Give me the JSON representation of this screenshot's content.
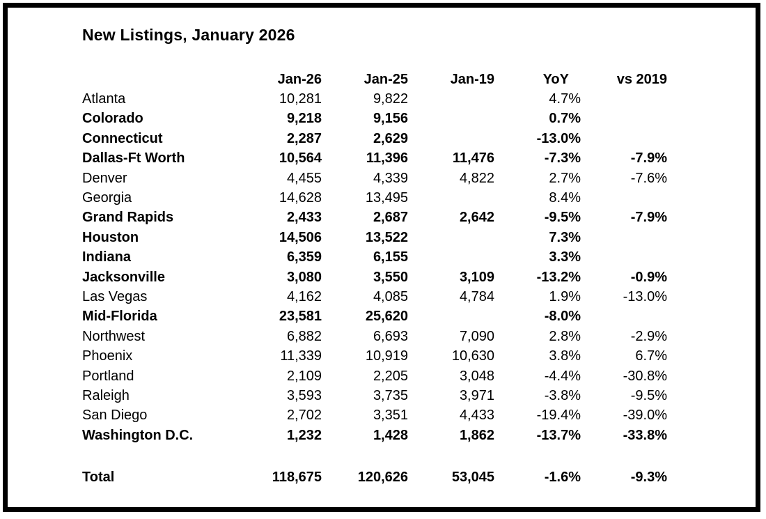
{
  "title": "New Listings, January 2026",
  "colors": {
    "text": "#000000",
    "background": "#ffffff",
    "frame_border": "#000000"
  },
  "chart_data": {
    "type": "table",
    "title": "New Listings, January 2026",
    "columns": [
      "",
      "Jan-26",
      "Jan-25",
      "Jan-19",
      "YoY",
      "vs 2019"
    ],
    "rows": [
      {
        "name": "Atlanta",
        "jan_26": "10,281",
        "jan_25": "9,822",
        "jan_19": "",
        "yoy": "4.7%",
        "vs_2019": "",
        "bold": false
      },
      {
        "name": "Colorado",
        "jan_26": "9,218",
        "jan_25": "9,156",
        "jan_19": "",
        "yoy": "0.7%",
        "vs_2019": "",
        "bold": true
      },
      {
        "name": "Connecticut",
        "jan_26": "2,287",
        "jan_25": "2,629",
        "jan_19": "",
        "yoy": "-13.0%",
        "vs_2019": "",
        "bold": true
      },
      {
        "name": "Dallas-Ft Worth",
        "jan_26": "10,564",
        "jan_25": "11,396",
        "jan_19": "11,476",
        "yoy": "-7.3%",
        "vs_2019": "-7.9%",
        "bold": true
      },
      {
        "name": "Denver",
        "jan_26": "4,455",
        "jan_25": "4,339",
        "jan_19": "4,822",
        "yoy": "2.7%",
        "vs_2019": "-7.6%",
        "bold": false
      },
      {
        "name": "Georgia",
        "jan_26": "14,628",
        "jan_25": "13,495",
        "jan_19": "",
        "yoy": "8.4%",
        "vs_2019": "",
        "bold": false
      },
      {
        "name": "Grand Rapids",
        "jan_26": "2,433",
        "jan_25": "2,687",
        "jan_19": "2,642",
        "yoy": "-9.5%",
        "vs_2019": "-7.9%",
        "bold": true
      },
      {
        "name": "Houston",
        "jan_26": "14,506",
        "jan_25": "13,522",
        "jan_19": "",
        "yoy": "7.3%",
        "vs_2019": "",
        "bold": true
      },
      {
        "name": "Indiana",
        "jan_26": "6,359",
        "jan_25": "6,155",
        "jan_19": "",
        "yoy": "3.3%",
        "vs_2019": "",
        "bold": true
      },
      {
        "name": "Jacksonville",
        "jan_26": "3,080",
        "jan_25": "3,550",
        "jan_19": "3,109",
        "yoy": "-13.2%",
        "vs_2019": "-0.9%",
        "bold": true
      },
      {
        "name": "Las Vegas",
        "jan_26": "4,162",
        "jan_25": "4,085",
        "jan_19": "4,784",
        "yoy": "1.9%",
        "vs_2019": "-13.0%",
        "bold": false
      },
      {
        "name": "Mid-Florida",
        "jan_26": "23,581",
        "jan_25": "25,620",
        "jan_19": "",
        "yoy": "-8.0%",
        "vs_2019": "",
        "bold": true
      },
      {
        "name": "Northwest",
        "jan_26": "6,882",
        "jan_25": "6,693",
        "jan_19": "7,090",
        "yoy": "2.8%",
        "vs_2019": "-2.9%",
        "bold": false
      },
      {
        "name": "Phoenix",
        "jan_26": "11,339",
        "jan_25": "10,919",
        "jan_19": "10,630",
        "yoy": "3.8%",
        "vs_2019": "6.7%",
        "bold": false
      },
      {
        "name": "Portland",
        "jan_26": "2,109",
        "jan_25": "2,205",
        "jan_19": "3,048",
        "yoy": "-4.4%",
        "vs_2019": "-30.8%",
        "bold": false
      },
      {
        "name": "Raleigh",
        "jan_26": "3,593",
        "jan_25": "3,735",
        "jan_19": "3,971",
        "yoy": "-3.8%",
        "vs_2019": "-9.5%",
        "bold": false
      },
      {
        "name": "San Diego",
        "jan_26": "2,702",
        "jan_25": "3,351",
        "jan_19": "4,433",
        "yoy": "-19.4%",
        "vs_2019": "-39.0%",
        "bold": false
      },
      {
        "name": "Washington D.C.",
        "jan_26": "1,232",
        "jan_25": "1,428",
        "jan_19": "1,862",
        "yoy": "-13.7%",
        "vs_2019": "-33.8%",
        "bold": true
      }
    ],
    "total": {
      "name": "Total",
      "jan_26": "118,675",
      "jan_25": "120,626",
      "jan_19": "53,045",
      "yoy": "-1.6%",
      "vs_2019": "-9.3%",
      "bold": true
    }
  }
}
